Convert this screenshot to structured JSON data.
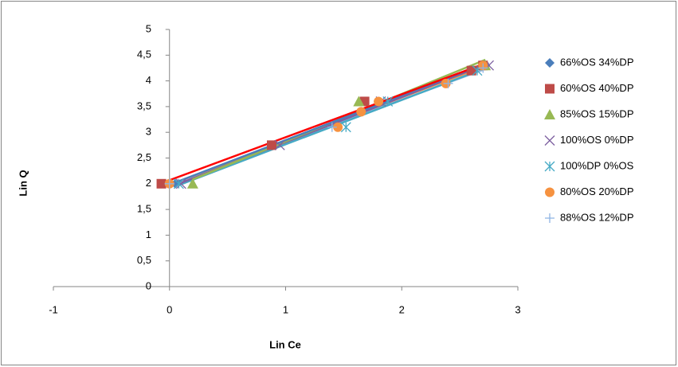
{
  "chart_data": {
    "type": "scatter",
    "x_label": "Lin Ce",
    "y_label": "Lin Q",
    "xlim": [
      -1,
      3
    ],
    "xticks": [
      -1,
      0,
      1,
      2,
      3
    ],
    "ylim": [
      0,
      5
    ],
    "yticks": [
      0,
      {
        "value": 0.5,
        "label": "0,5"
      },
      1,
      {
        "value": 1.5,
        "label": "1,5"
      },
      2,
      {
        "value": 2.5,
        "label": "2,5"
      },
      3,
      {
        "value": 3.5,
        "label": "3,5"
      },
      4,
      {
        "value": 4.5,
        "label": "4,5"
      },
      5
    ],
    "grid": false,
    "legend": "right",
    "trendline": "linear",
    "series": [
      {
        "name": "66%OS 34%DP",
        "color": "#4a7ebb",
        "marker": "diamond",
        "x": [
          0.05,
          0.88,
          1.8,
          2.72
        ],
        "values": [
          2.0,
          2.75,
          3.6,
          4.3
        ]
      },
      {
        "name": "60%OS 40%DP",
        "color": "#be4b48",
        "marker": "square",
        "x": [
          -0.07,
          0.88,
          1.68,
          2.6,
          2.7
        ],
        "values": [
          2.0,
          2.75,
          3.6,
          4.2,
          4.3
        ]
      },
      {
        "name": "85%OS 15%DP",
        "color": "#98b954",
        "marker": "triangle",
        "x": [
          0.2,
          1.63,
          2.72
        ],
        "values": [
          2.0,
          3.6,
          4.3
        ]
      },
      {
        "name": "100%OS 0%DP",
        "color": "#7d60a0",
        "marker": "x",
        "x": [
          0.1,
          0.95,
          1.82,
          2.75
        ],
        "values": [
          2.0,
          2.75,
          3.6,
          4.3
        ]
      },
      {
        "name": "100%DP 0%OS",
        "color": "#46aac5",
        "marker": "asterisk",
        "x": [
          0.08,
          1.52,
          1.88,
          2.65
        ],
        "values": [
          2.0,
          3.1,
          3.6,
          4.2
        ]
      },
      {
        "name": "80%OS 20%DP",
        "color": "#f69240",
        "marker": "circle",
        "x": [
          0.0,
          1.45,
          1.65,
          1.8,
          2.38,
          2.7
        ],
        "values": [
          2.0,
          3.1,
          3.4,
          3.6,
          3.95,
          4.3
        ]
      },
      {
        "name": "88%OS 12%DP",
        "color": "#8eb4e3",
        "marker": "plus",
        "x": [
          0.0,
          1.4,
          2.4,
          2.7
        ],
        "values": [
          2.0,
          3.1,
          3.95,
          4.25
        ]
      }
    ]
  }
}
